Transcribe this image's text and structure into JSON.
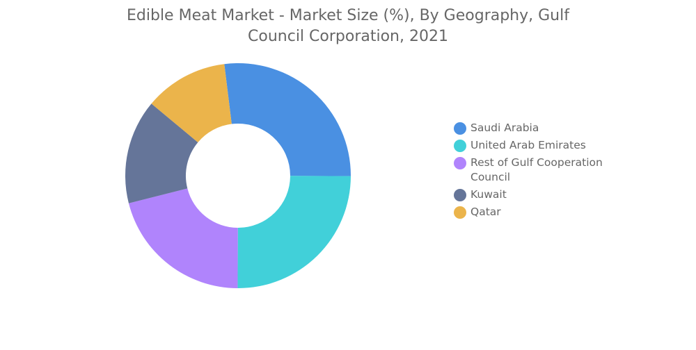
{
  "chart_data": {
    "type": "donut",
    "title": "Edible Meat Market - Market Size (%), By Geography, Gulf Council Corporation, 2021",
    "categories": [
      "Saudi Arabia",
      "United Arab Emirates",
      "Rest of Gulf Cooperation Council",
      "Kuwait",
      "Qatar"
    ],
    "values": [
      27,
      25,
      21,
      15,
      12
    ],
    "colors": [
      "#4a90e2",
      "#41d0d9",
      "#b084fc",
      "#657599",
      "#ebb44b"
    ],
    "legend": "right"
  }
}
